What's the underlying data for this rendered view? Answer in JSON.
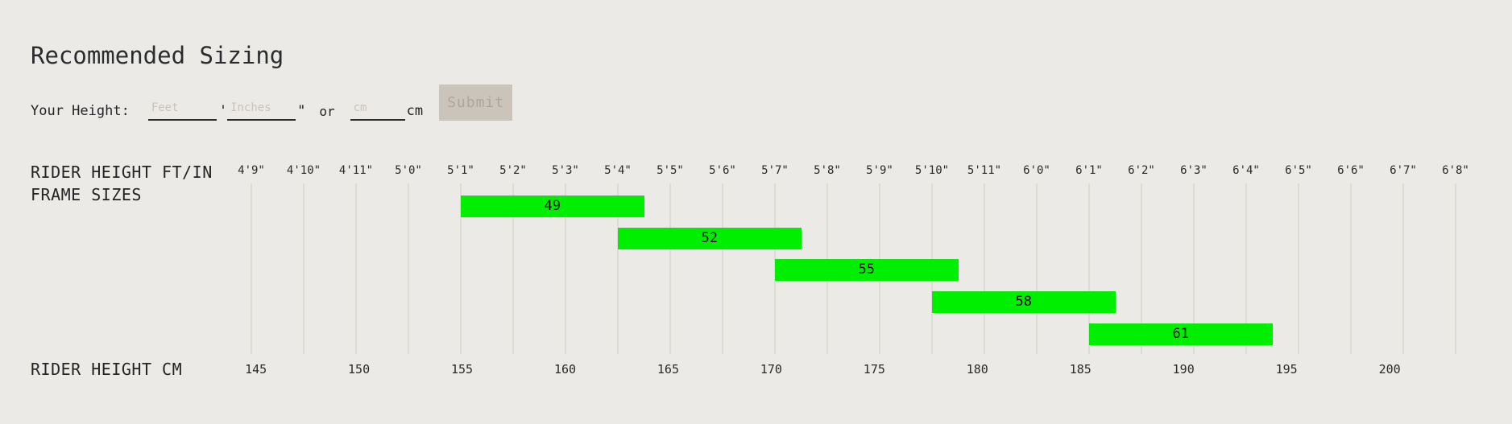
{
  "title": "Recommended Sizing",
  "form": {
    "label": "Your Height:",
    "feet_placeholder": "Feet",
    "feet_suffix": "'",
    "inches_placeholder": "Inches",
    "inches_suffix": "\"",
    "or_text": "or",
    "cm_placeholder": "cm",
    "cm_unit": "cm",
    "submit_label": "Submit"
  },
  "chart_data": {
    "type": "horizontal-range-bar",
    "title": "Recommended Sizing",
    "rows_label": "FRAME SIZES",
    "bar_color": "#00EE00",
    "grid": "vertical lines at every inch tick",
    "top_axis": {
      "label": "RIDER HEIGHT FT/IN",
      "range_inches": [
        57,
        80
      ],
      "ticks": [
        {
          "label": "4'9\"",
          "inches": 57
        },
        {
          "label": "4'10\"",
          "inches": 58
        },
        {
          "label": "4'11\"",
          "inches": 59
        },
        {
          "label": "5'0\"",
          "inches": 60
        },
        {
          "label": "5'1\"",
          "inches": 61
        },
        {
          "label": "5'2\"",
          "inches": 62
        },
        {
          "label": "5'3\"",
          "inches": 63
        },
        {
          "label": "5'4\"",
          "inches": 64
        },
        {
          "label": "5'5\"",
          "inches": 65
        },
        {
          "label": "5'6\"",
          "inches": 66
        },
        {
          "label": "5'7\"",
          "inches": 67
        },
        {
          "label": "5'8\"",
          "inches": 68
        },
        {
          "label": "5'9\"",
          "inches": 69
        },
        {
          "label": "5'10\"",
          "inches": 70
        },
        {
          "label": "5'11\"",
          "inches": 71
        },
        {
          "label": "6'0\"",
          "inches": 72
        },
        {
          "label": "6'1\"",
          "inches": 73
        },
        {
          "label": "6'2\"",
          "inches": 74
        },
        {
          "label": "6'3\"",
          "inches": 75
        },
        {
          "label": "6'4\"",
          "inches": 76
        },
        {
          "label": "6'5\"",
          "inches": 77
        },
        {
          "label": "6'6\"",
          "inches": 78
        },
        {
          "label": "6'7\"",
          "inches": 79
        },
        {
          "label": "6'8\"",
          "inches": 80
        }
      ]
    },
    "bottom_axis": {
      "label": "RIDER HEIGHT CM",
      "ticks": [
        {
          "label": "145",
          "cm": 145
        },
        {
          "label": "150",
          "cm": 150
        },
        {
          "label": "155",
          "cm": 155
        },
        {
          "label": "160",
          "cm": 160
        },
        {
          "label": "165",
          "cm": 165
        },
        {
          "label": "170",
          "cm": 170
        },
        {
          "label": "175",
          "cm": 175
        },
        {
          "label": "180",
          "cm": 180
        },
        {
          "label": "185",
          "cm": 185
        },
        {
          "label": "190",
          "cm": 190
        },
        {
          "label": "195",
          "cm": 195
        },
        {
          "label": "200",
          "cm": 200
        }
      ]
    },
    "bars": [
      {
        "label": "49",
        "start_inches": 61.0,
        "end_inches": 64.5,
        "start_cm": 155.0,
        "end_cm": 164.0
      },
      {
        "label": "52",
        "start_inches": 64.0,
        "end_inches": 67.5,
        "start_cm": 162.5,
        "end_cm": 171.5
      },
      {
        "label": "55",
        "start_inches": 67.0,
        "end_inches": 70.5,
        "start_cm": 170.0,
        "end_cm": 179.0
      },
      {
        "label": "58",
        "start_inches": 70.0,
        "end_inches": 73.5,
        "start_cm": 177.5,
        "end_cm": 186.5
      },
      {
        "label": "61",
        "start_inches": 73.0,
        "end_inches": 76.5,
        "start_cm": 185.0,
        "end_cm": 194.0
      }
    ]
  }
}
